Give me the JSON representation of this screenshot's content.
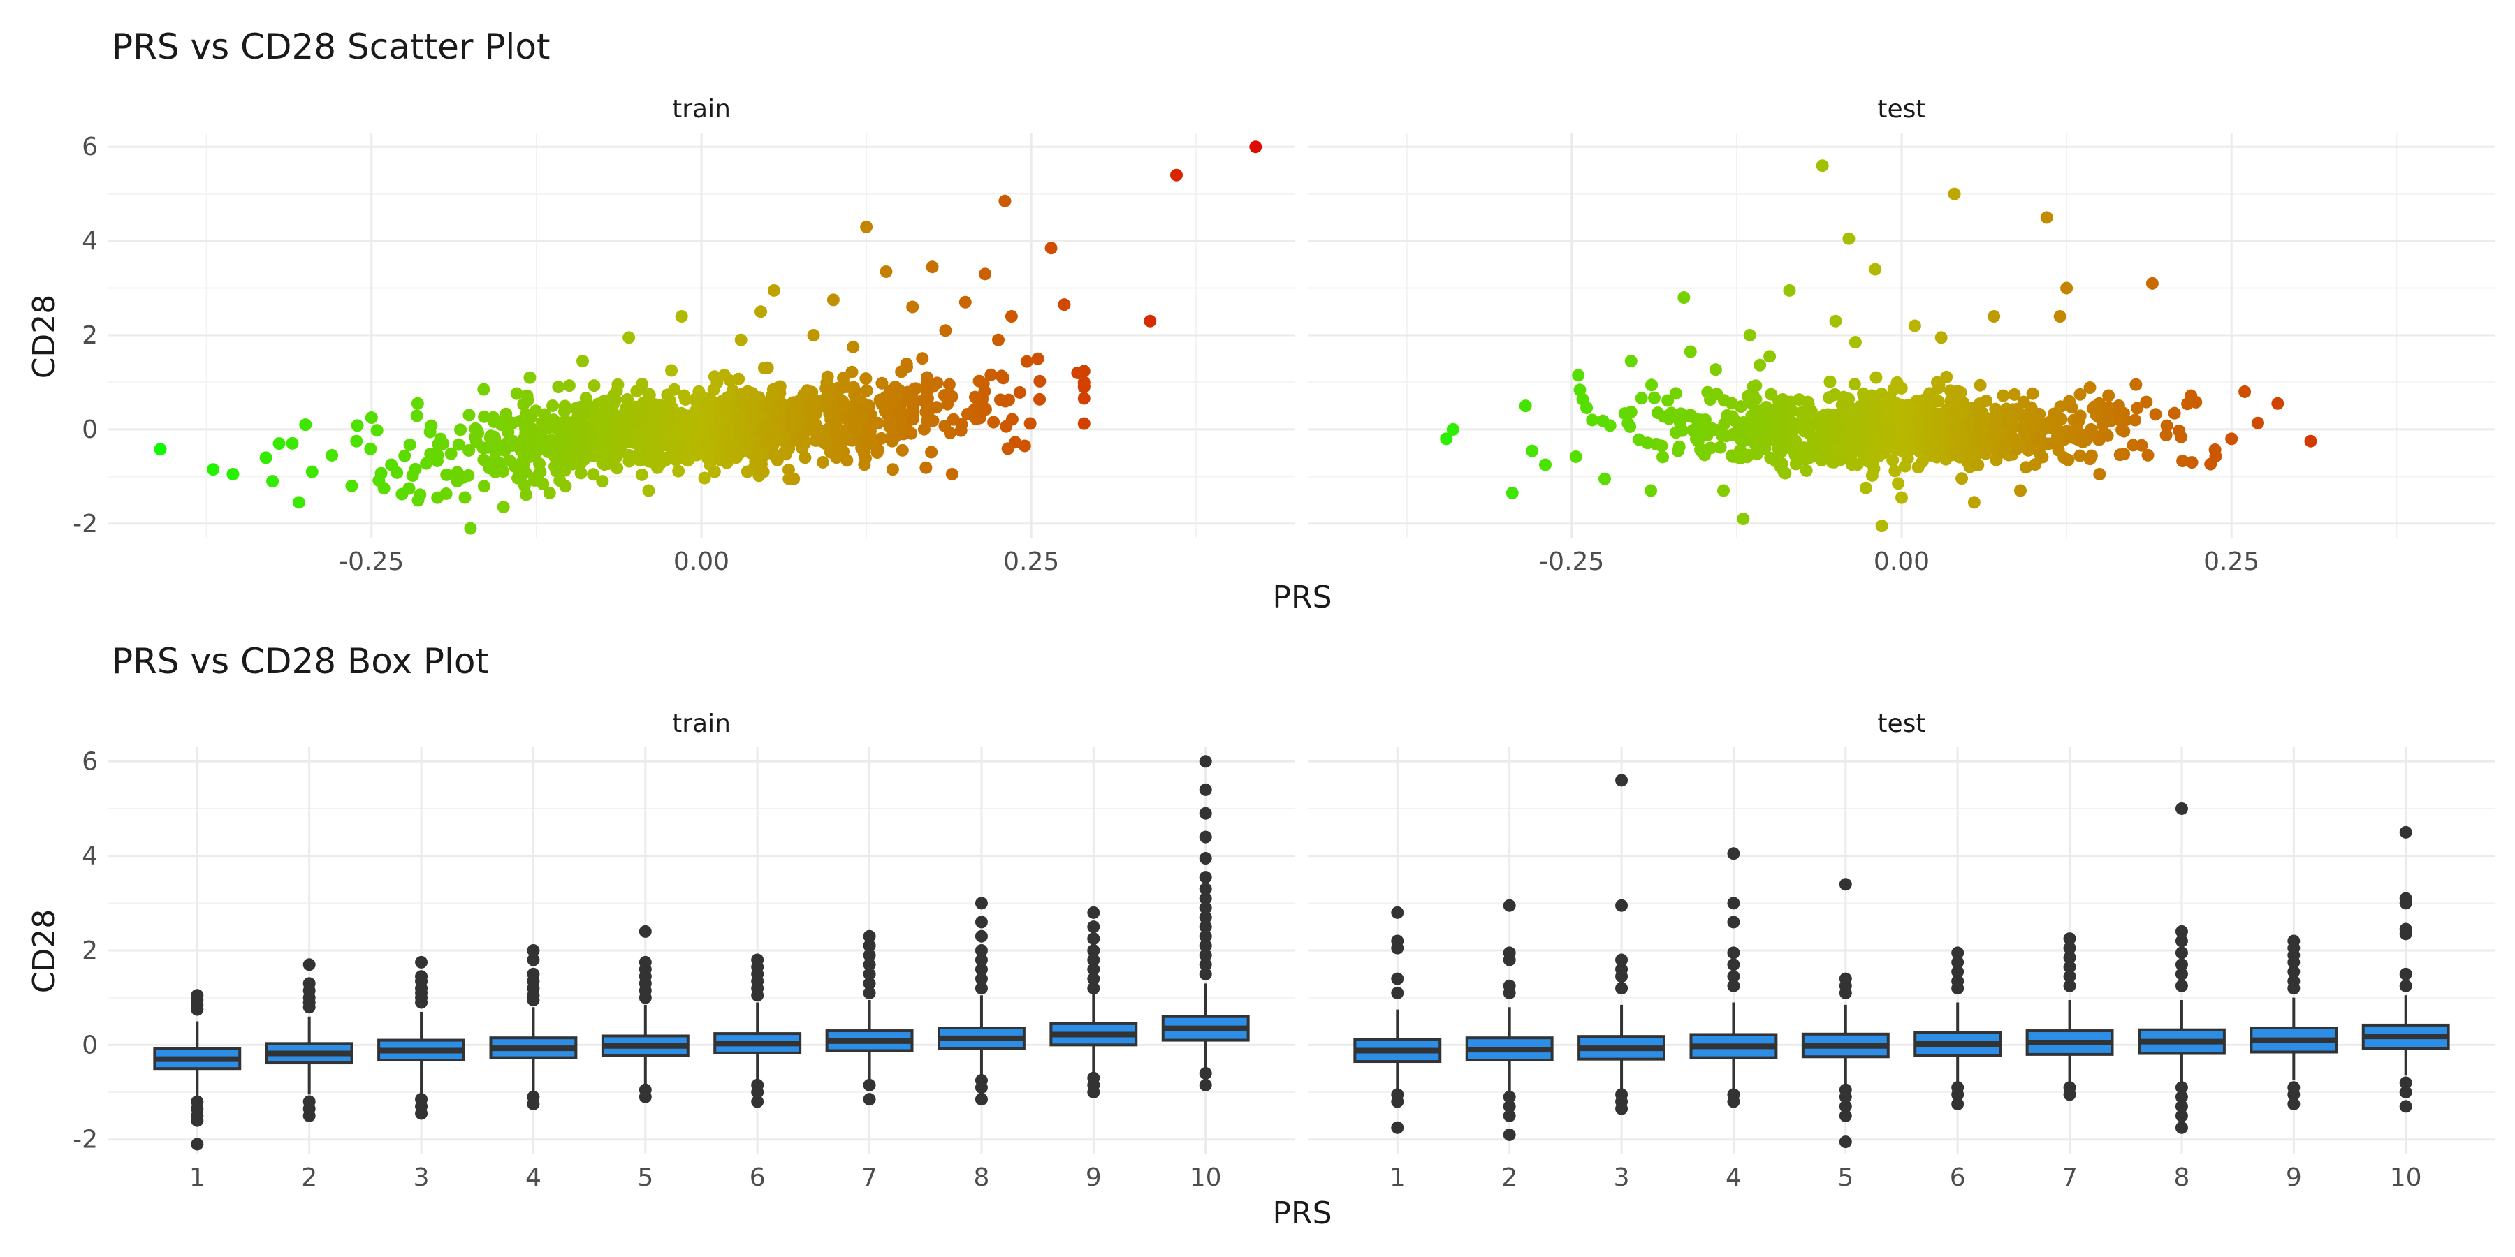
{
  "chart_data": [
    {
      "type": "scatter",
      "title": "PRS vs CD28 Scatter Plot",
      "xlabel": "PRS",
      "ylabel": "CD28",
      "xlim": [
        -0.45,
        0.45
      ],
      "ylim": [
        -2.3,
        6.3
      ],
      "x_ticks": [
        -0.25,
        0.0,
        0.25
      ],
      "x_tick_labels": [
        "-0.25",
        "0.00",
        "0.25"
      ],
      "y_ticks": [
        -2,
        0,
        2,
        4,
        6
      ],
      "y_tick_labels": [
        "-2",
        "0",
        "2",
        "4",
        "6"
      ],
      "color_scale": {
        "low": "#00ff00",
        "mid": "#b8b800",
        "high": "#e00000"
      },
      "grid": true,
      "panels": [
        {
          "name": "train",
          "points": [
            [
              -0.41,
              -0.42
            ],
            [
              -0.37,
              -0.85
            ],
            [
              -0.355,
              -0.95
            ],
            [
              -0.33,
              -0.6
            ],
            [
              -0.325,
              -1.1
            ],
            [
              -0.32,
              -0.3
            ],
            [
              -0.305,
              -1.55
            ],
            [
              -0.3,
              0.1
            ],
            [
              -0.295,
              -0.9
            ],
            [
              -0.28,
              -0.55
            ],
            [
              -0.265,
              -1.2
            ],
            [
              -0.25,
              0.25
            ],
            [
              -0.235,
              -0.75
            ],
            [
              -0.215,
              0.55
            ],
            [
              -0.2,
              -1.45
            ],
            [
              -0.185,
              -1.1
            ],
            [
              -0.175,
              -2.1
            ],
            [
              -0.165,
              0.85
            ],
            [
              -0.15,
              -1.65
            ],
            [
              -0.13,
              1.1
            ],
            [
              -0.115,
              -1.35
            ],
            [
              -0.09,
              1.45
            ],
            [
              -0.075,
              -1.1
            ],
            [
              -0.055,
              1.95
            ],
            [
              -0.04,
              -1.3
            ],
            [
              -0.015,
              2.4
            ],
            [
              0.01,
              -0.9
            ],
            [
              0.03,
              1.9
            ],
            [
              0.045,
              2.5
            ],
            [
              0.055,
              2.95
            ],
            [
              0.07,
              -1.05
            ],
            [
              0.085,
              2.0
            ],
            [
              0.1,
              2.75
            ],
            [
              0.115,
              1.75
            ],
            [
              0.125,
              4.3
            ],
            [
              0.14,
              3.35
            ],
            [
              0.145,
              -0.85
            ],
            [
              0.16,
              2.6
            ],
            [
              0.175,
              3.45
            ],
            [
              0.185,
              2.1
            ],
            [
              0.19,
              -0.95
            ],
            [
              0.2,
              2.7
            ],
            [
              0.215,
              3.3
            ],
            [
              0.225,
              1.9
            ],
            [
              0.23,
              4.85
            ],
            [
              0.235,
              2.4
            ],
            [
              0.245,
              -0.35
            ],
            [
              0.255,
              1.5
            ],
            [
              0.265,
              3.85
            ],
            [
              0.275,
              2.65
            ],
            [
              0.285,
              1.2
            ],
            [
              0.29,
              1.0
            ],
            [
              0.34,
              2.3
            ],
            [
              0.36,
              5.4
            ],
            [
              0.42,
              6.0
            ]
          ],
          "cloud_points": 1200
        },
        {
          "name": "test",
          "points": [
            [
              -0.345,
              -0.2
            ],
            [
              -0.34,
              0.0
            ],
            [
              -0.295,
              -1.35
            ],
            [
              -0.285,
              0.5
            ],
            [
              -0.27,
              -0.75
            ],
            [
              -0.245,
              1.15
            ],
            [
              -0.225,
              -1.05
            ],
            [
              -0.205,
              1.45
            ],
            [
              -0.19,
              -1.3
            ],
            [
              -0.165,
              2.8
            ],
            [
              -0.16,
              1.65
            ],
            [
              -0.135,
              -1.3
            ],
            [
              -0.12,
              -1.9
            ],
            [
              -0.115,
              2.0
            ],
            [
              -0.1,
              1.55
            ],
            [
              -0.085,
              2.95
            ],
            [
              -0.06,
              5.6
            ],
            [
              -0.05,
              2.3
            ],
            [
              -0.04,
              4.05
            ],
            [
              -0.035,
              1.85
            ],
            [
              -0.02,
              3.4
            ],
            [
              -0.015,
              -2.05
            ],
            [
              0.0,
              -1.45
            ],
            [
              0.01,
              2.2
            ],
            [
              0.03,
              1.95
            ],
            [
              0.04,
              5.0
            ],
            [
              0.055,
              -1.55
            ],
            [
              0.07,
              2.4
            ],
            [
              0.09,
              -1.3
            ],
            [
              0.11,
              4.5
            ],
            [
              0.12,
              2.4
            ],
            [
              0.125,
              3.0
            ],
            [
              0.15,
              -0.95
            ],
            [
              0.19,
              3.1
            ],
            [
              0.22,
              -0.7
            ],
            [
              0.25,
              -0.2
            ],
            [
              0.26,
              0.8
            ],
            [
              0.285,
              0.55
            ],
            [
              0.31,
              -0.25
            ]
          ],
          "cloud_points": 900
        }
      ]
    },
    {
      "type": "box",
      "title": "PRS vs CD28 Box Plot",
      "xlabel": "PRS",
      "ylabel": "CD28",
      "categories": [
        "1",
        "2",
        "3",
        "4",
        "5",
        "6",
        "7",
        "8",
        "9",
        "10"
      ],
      "ylim": [
        -2.3,
        6.3
      ],
      "y_ticks": [
        -2,
        0,
        2,
        4,
        6
      ],
      "y_tick_labels": [
        "-2",
        "0",
        "2",
        "4",
        "6"
      ],
      "box_color": "#2d8ee8",
      "grid": true,
      "panels": [
        {
          "name": "train",
          "boxes": [
            {
              "q1": -0.5,
              "median": -0.3,
              "q3": -0.08,
              "whisker_low": -1.1,
              "whisker_high": 0.5,
              "outliers": [
                1.05,
                0.95,
                0.85,
                0.75,
                -1.2,
                -1.35,
                -1.5,
                -1.6,
                -2.1
              ]
            },
            {
              "q1": -0.38,
              "median": -0.18,
              "q3": 0.03,
              "whisker_low": -1.05,
              "whisker_high": 0.6,
              "outliers": [
                1.7,
                1.3,
                1.15,
                1.0,
                0.9,
                0.8,
                -1.2,
                -1.35,
                -1.5
              ]
            },
            {
              "q1": -0.32,
              "median": -0.12,
              "q3": 0.1,
              "whisker_low": -1.05,
              "whisker_high": 0.7,
              "outliers": [
                1.75,
                1.45,
                1.35,
                1.2,
                1.1,
                1.0,
                0.9,
                -1.15,
                -1.3,
                -1.45
              ]
            },
            {
              "q1": -0.27,
              "median": -0.07,
              "q3": 0.15,
              "whisker_low": -1.0,
              "whisker_high": 0.8,
              "outliers": [
                2.0,
                1.8,
                1.5,
                1.35,
                1.2,
                1.05,
                0.95,
                -1.1,
                -1.25
              ]
            },
            {
              "q1": -0.22,
              "median": -0.02,
              "q3": 0.19,
              "whisker_low": -0.85,
              "whisker_high": 0.85,
              "outliers": [
                2.4,
                1.75,
                1.6,
                1.45,
                1.3,
                1.15,
                1.0,
                -0.95,
                -1.1
              ]
            },
            {
              "q1": -0.17,
              "median": 0.03,
              "q3": 0.24,
              "whisker_low": -0.8,
              "whisker_high": 0.9,
              "outliers": [
                1.8,
                1.65,
                1.5,
                1.35,
                1.2,
                1.05,
                -0.85,
                -1.0,
                -1.2
              ]
            },
            {
              "q1": -0.12,
              "median": 0.08,
              "q3": 0.3,
              "whisker_low": -0.75,
              "whisker_high": 0.95,
              "outliers": [
                2.3,
                2.1,
                1.9,
                1.7,
                1.5,
                1.3,
                1.1,
                -0.85,
                -1.15
              ]
            },
            {
              "q1": -0.07,
              "median": 0.14,
              "q3": 0.36,
              "whisker_low": -0.7,
              "whisker_high": 1.05,
              "outliers": [
                3.0,
                2.6,
                2.3,
                2.0,
                1.8,
                1.6,
                1.4,
                1.2,
                -0.75,
                -0.9,
                -1.15
              ]
            },
            {
              "q1": 0.0,
              "median": 0.22,
              "q3": 0.45,
              "whisker_low": -0.6,
              "whisker_high": 1.1,
              "outliers": [
                2.8,
                2.5,
                2.25,
                2.0,
                1.8,
                1.6,
                1.4,
                1.2,
                -0.7,
                -0.85,
                -1.0
              ]
            },
            {
              "q1": 0.1,
              "median": 0.35,
              "q3": 0.6,
              "whisker_low": -0.5,
              "whisker_high": 1.3,
              "outliers": [
                6.0,
                5.4,
                4.9,
                4.4,
                3.95,
                3.55,
                3.3,
                3.1,
                2.9,
                2.7,
                2.5,
                2.3,
                2.1,
                1.9,
                1.7,
                1.5,
                -0.6,
                -0.85
              ]
            }
          ]
        },
        {
          "name": "test",
          "boxes": [
            {
              "q1": -0.35,
              "median": -0.12,
              "q3": 0.12,
              "whisker_low": -1.0,
              "whisker_high": 0.75,
              "outliers": [
                2.8,
                2.2,
                2.05,
                1.4,
                1.1,
                -1.05,
                -1.2,
                -1.75
              ]
            },
            {
              "q1": -0.32,
              "median": -0.1,
              "q3": 0.15,
              "whisker_low": -1.0,
              "whisker_high": 0.8,
              "outliers": [
                2.95,
                1.95,
                1.8,
                1.25,
                1.1,
                -1.1,
                -1.3,
                -1.5,
                -1.9
              ]
            },
            {
              "q1": -0.3,
              "median": -0.07,
              "q3": 0.18,
              "whisker_low": -0.95,
              "whisker_high": 0.85,
              "outliers": [
                5.6,
                2.95,
                1.8,
                1.6,
                1.45,
                1.2,
                -1.05,
                -1.2,
                -1.35
              ]
            },
            {
              "q1": -0.27,
              "median": -0.03,
              "q3": 0.22,
              "whisker_low": -0.95,
              "whisker_high": 0.9,
              "outliers": [
                4.05,
                3.0,
                2.6,
                1.95,
                1.7,
                1.45,
                1.25,
                -1.05,
                -1.2
              ]
            },
            {
              "q1": -0.25,
              "median": -0.02,
              "q3": 0.23,
              "whisker_low": -0.9,
              "whisker_high": 0.85,
              "outliers": [
                3.4,
                1.4,
                1.25,
                1.1,
                -0.95,
                -1.1,
                -1.3,
                -1.5,
                -2.05
              ]
            },
            {
              "q1": -0.22,
              "median": 0.02,
              "q3": 0.27,
              "whisker_low": -0.85,
              "whisker_high": 0.9,
              "outliers": [
                1.95,
                1.75,
                1.55,
                1.35,
                1.2,
                -0.9,
                -1.05,
                -1.25
              ]
            },
            {
              "q1": -0.2,
              "median": 0.05,
              "q3": 0.3,
              "whisker_low": -0.8,
              "whisker_high": 0.95,
              "outliers": [
                2.25,
                2.05,
                1.85,
                1.65,
                1.45,
                1.25,
                -0.9,
                -1.05
              ]
            },
            {
              "q1": -0.18,
              "median": 0.07,
              "q3": 0.32,
              "whisker_low": -0.8,
              "whisker_high": 0.95,
              "outliers": [
                5.0,
                2.4,
                2.2,
                1.95,
                1.7,
                1.5,
                1.25,
                -0.9,
                -1.1,
                -1.3,
                -1.5,
                -1.75
              ]
            },
            {
              "q1": -0.15,
              "median": 0.1,
              "q3": 0.36,
              "whisker_low": -0.75,
              "whisker_high": 1.0,
              "outliers": [
                2.2,
                2.05,
                1.9,
                1.75,
                1.55,
                1.35,
                1.2,
                -0.9,
                -1.05,
                -1.25
              ]
            },
            {
              "q1": -0.07,
              "median": 0.18,
              "q3": 0.42,
              "whisker_low": -0.65,
              "whisker_high": 1.05,
              "outliers": [
                4.5,
                3.1,
                3.0,
                2.45,
                2.35,
                1.5,
                1.25,
                -0.8,
                -1.0,
                -1.3
              ]
            }
          ]
        }
      ]
    }
  ]
}
